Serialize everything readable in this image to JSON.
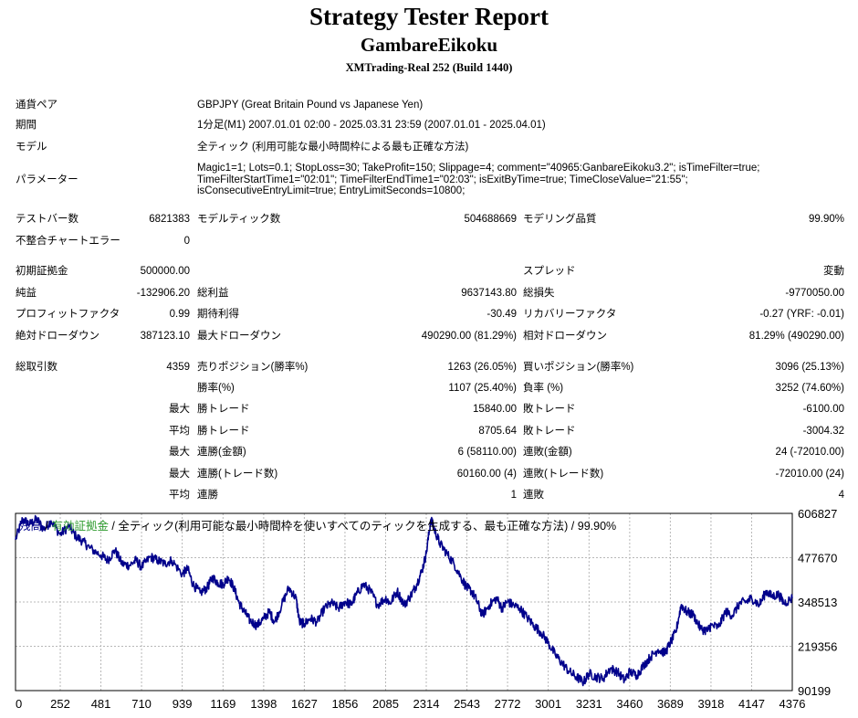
{
  "header": {
    "title": "Strategy Tester Report",
    "subtitle": "GambareEikoku",
    "server": "XMTrading-Real 252 (Build 1440)"
  },
  "info": {
    "symbol_label": "通貨ペア",
    "symbol_value": "GBPJPY (Great Britain Pound vs Japanese Yen)",
    "period_label": "期間",
    "period_value": "1分足(M1) 2007.01.01 02:00 - 2025.03.31 23:59 (2007.01.01 - 2025.04.01)",
    "model_label": "モデル",
    "model_value": "全ティック (利用可能な最小時間枠による最も正確な方法)",
    "params_label": "パラメーター",
    "params_lines": [
      "Magic1=1; Lots=0.1; StopLoss=30; TakeProfit=150; Slippage=4; comment=\"40965:GanbareEikoku3.2\"; isTimeFilter=true;",
      "TimeFilterStartTime1=\"02:01\"; TimeFilterEndTime1=\"02:03\"; isExitByTime=true; TimeCloseValue=\"21:55\";",
      "isConsecutiveEntryLimit=true; EntryLimitSeconds=10800;"
    ]
  },
  "stats": {
    "bars_label": "テストバー数",
    "bars_value": "6821383",
    "ticks_label": "モデルティック数",
    "ticks_value": "504688669",
    "quality_label": "モデリング品質",
    "quality_value": "99.90%",
    "mismatch_label": "不整合チャートエラー",
    "mismatch_value": "0",
    "deposit_label": "初期証拠金",
    "deposit_value": "500000.00",
    "spread_label": "スプレッド",
    "spread_value": "変動",
    "net_label": "純益",
    "net_value": "-132906.20",
    "gross_profit_label": "総利益",
    "gross_profit_value": "9637143.80",
    "gross_loss_label": "総損失",
    "gross_loss_value": "-9770050.00",
    "pf_label": "プロフィットファクタ",
    "pf_value": "0.99",
    "expected_label": "期待利得",
    "expected_value": "-30.49",
    "recovery_label": "リカバリーファクタ",
    "recovery_value": "-0.27 (YRF: -0.01)",
    "abs_dd_label": "絶対ドローダウン",
    "abs_dd_value": "387123.10",
    "max_dd_label": "最大ドローダウン",
    "max_dd_value": "490290.00 (81.29%)",
    "rel_dd_label": "相対ドローダウン",
    "rel_dd_value": "81.29% (490290.00)",
    "total_trades_label": "総取引数",
    "total_trades_value": "4359",
    "short_label": "売りポジション(勝率%)",
    "short_value": "1263 (26.05%)",
    "long_label": "買いポジション(勝率%)",
    "long_value": "3096 (25.13%)",
    "win_rate_label": "勝率(%)",
    "win_rate_value": "1107 (25.40%)",
    "loss_rate_label": "負率 (%)",
    "loss_rate_value": "3252 (74.60%)",
    "max1_label": "最大",
    "max_win_label": "勝トレード",
    "max_win_value": "15840.00",
    "max_loss_label": "敗トレード",
    "max_loss_value": "-6100.00",
    "avg1_label": "平均",
    "avg_win_label": "勝トレード",
    "avg_win_value": "8705.64",
    "avg_loss_label": "敗トレード",
    "avg_loss_value": "-3004.32",
    "max2_label": "最大",
    "cons_wins_amt_label": "連勝(金額)",
    "cons_wins_amt_value": "6 (58110.00)",
    "cons_losses_amt_label": "連敗(金額)",
    "cons_losses_amt_value": "24 (-72010.00)",
    "max3_label": "最大",
    "cons_wins_trades_label": "連勝(トレード数)",
    "cons_wins_trades_value": "60160.00 (4)",
    "cons_losses_trades_label": "連敗(トレード数)",
    "cons_losses_trades_value": "-72010.00 (24)",
    "avg2_label": "平均",
    "avg_cons_wins_label": "連勝",
    "avg_cons_wins_value": "1",
    "avg_cons_losses_label": "連敗",
    "avg_cons_losses_value": "4"
  },
  "legend": {
    "balance": "残高",
    "sep1": " / ",
    "equity": "有効証拠金",
    "rest": " / 全ティック(利用可能な最小時間枠を使いすべてのティックを生成する、最も正確な方法) / 99.90%"
  },
  "colors": {
    "balance_line": "#00008b",
    "equity_legend": "#2e9b2e",
    "grid": "#b8b8b8",
    "axis": "#000000"
  },
  "chart_data": {
    "type": "line",
    "title": "",
    "xlabel": "",
    "ylabel": "",
    "grid": true,
    "xlim": [
      0,
      4376
    ],
    "ylim": [
      90199,
      606827
    ],
    "x_ticks": [
      0,
      252,
      481,
      710,
      939,
      1169,
      1398,
      1627,
      1856,
      2085,
      2314,
      2543,
      2772,
      3001,
      3231,
      3460,
      3689,
      3918,
      4147,
      4376
    ],
    "y_ticks": [
      606827,
      477670,
      348513,
      219356,
      90199
    ],
    "series": [
      {
        "name": "残高",
        "color": "#00008b",
        "points": [
          [
            0,
            530000
          ],
          [
            40,
            590000
          ],
          [
            80,
            575000
          ],
          [
            120,
            590000
          ],
          [
            160,
            560000
          ],
          [
            200,
            585000
          ],
          [
            252,
            545000
          ],
          [
            300,
            570000
          ],
          [
            340,
            540000
          ],
          [
            380,
            525000
          ],
          [
            420,
            505000
          ],
          [
            481,
            485000
          ],
          [
            520,
            470000
          ],
          [
            560,
            500000
          ],
          [
            600,
            460000
          ],
          [
            640,
            455000
          ],
          [
            680,
            470000
          ],
          [
            710,
            450000
          ],
          [
            760,
            480000
          ],
          [
            800,
            470000
          ],
          [
            840,
            460000
          ],
          [
            880,
            470000
          ],
          [
            939,
            430000
          ],
          [
            970,
            445000
          ],
          [
            1000,
            400000
          ],
          [
            1040,
            375000
          ],
          [
            1080,
            390000
          ],
          [
            1110,
            420000
          ],
          [
            1140,
            405000
          ],
          [
            1169,
            400000
          ],
          [
            1200,
            420000
          ],
          [
            1230,
            390000
          ],
          [
            1260,
            345000
          ],
          [
            1290,
            320000
          ],
          [
            1320,
            295000
          ],
          [
            1360,
            280000
          ],
          [
            1398,
            300000
          ],
          [
            1430,
            320000
          ],
          [
            1460,
            290000
          ],
          [
            1500,
            340000
          ],
          [
            1540,
            390000
          ],
          [
            1580,
            360000
          ],
          [
            1600,
            290000
          ],
          [
            1627,
            285000
          ],
          [
            1660,
            300000
          ],
          [
            1700,
            290000
          ],
          [
            1740,
            330000
          ],
          [
            1780,
            345000
          ],
          [
            1820,
            330000
          ],
          [
            1856,
            350000
          ],
          [
            1890,
            340000
          ],
          [
            1920,
            370000
          ],
          [
            1960,
            400000
          ],
          [
            2000,
            380000
          ],
          [
            2040,
            340000
          ],
          [
            2085,
            360000
          ],
          [
            2110,
            345000
          ],
          [
            2150,
            380000
          ],
          [
            2190,
            340000
          ],
          [
            2230,
            370000
          ],
          [
            2260,
            400000
          ],
          [
            2290,
            440000
          ],
          [
            2314,
            490000
          ],
          [
            2340,
            590000
          ],
          [
            2360,
            560000
          ],
          [
            2390,
            520000
          ],
          [
            2430,
            490000
          ],
          [
            2470,
            460000
          ],
          [
            2510,
            420000
          ],
          [
            2543,
            390000
          ],
          [
            2570,
            380000
          ],
          [
            2600,
            350000
          ],
          [
            2630,
            310000
          ],
          [
            2670,
            340000
          ],
          [
            2710,
            360000
          ],
          [
            2740,
            330000
          ],
          [
            2772,
            350000
          ],
          [
            2800,
            340000
          ],
          [
            2840,
            330000
          ],
          [
            2880,
            305000
          ],
          [
            2920,
            280000
          ],
          [
            2960,
            260000
          ],
          [
            3001,
            230000
          ],
          [
            3040,
            195000
          ],
          [
            3080,
            170000
          ],
          [
            3120,
            145000
          ],
          [
            3160,
            130000
          ],
          [
            3200,
            115000
          ],
          [
            3231,
            140000
          ],
          [
            3270,
            130000
          ],
          [
            3310,
            125000
          ],
          [
            3350,
            155000
          ],
          [
            3390,
            145000
          ],
          [
            3430,
            120000
          ],
          [
            3460,
            145000
          ],
          [
            3500,
            135000
          ],
          [
            3540,
            165000
          ],
          [
            3580,
            190000
          ],
          [
            3620,
            210000
          ],
          [
            3660,
            200000
          ],
          [
            3689,
            230000
          ],
          [
            3720,
            260000
          ],
          [
            3750,
            340000
          ],
          [
            3780,
            320000
          ],
          [
            3820,
            310000
          ],
          [
            3860,
            270000
          ],
          [
            3900,
            265000
          ],
          [
            3918,
            280000
          ],
          [
            3960,
            275000
          ],
          [
            4000,
            320000
          ],
          [
            4040,
            310000
          ],
          [
            4080,
            345000
          ],
          [
            4120,
            350000
          ],
          [
            4147,
            360000
          ],
          [
            4190,
            340000
          ],
          [
            4230,
            380000
          ],
          [
            4260,
            365000
          ],
          [
            4300,
            370000
          ],
          [
            4330,
            345000
          ],
          [
            4376,
            360000
          ]
        ]
      }
    ]
  }
}
